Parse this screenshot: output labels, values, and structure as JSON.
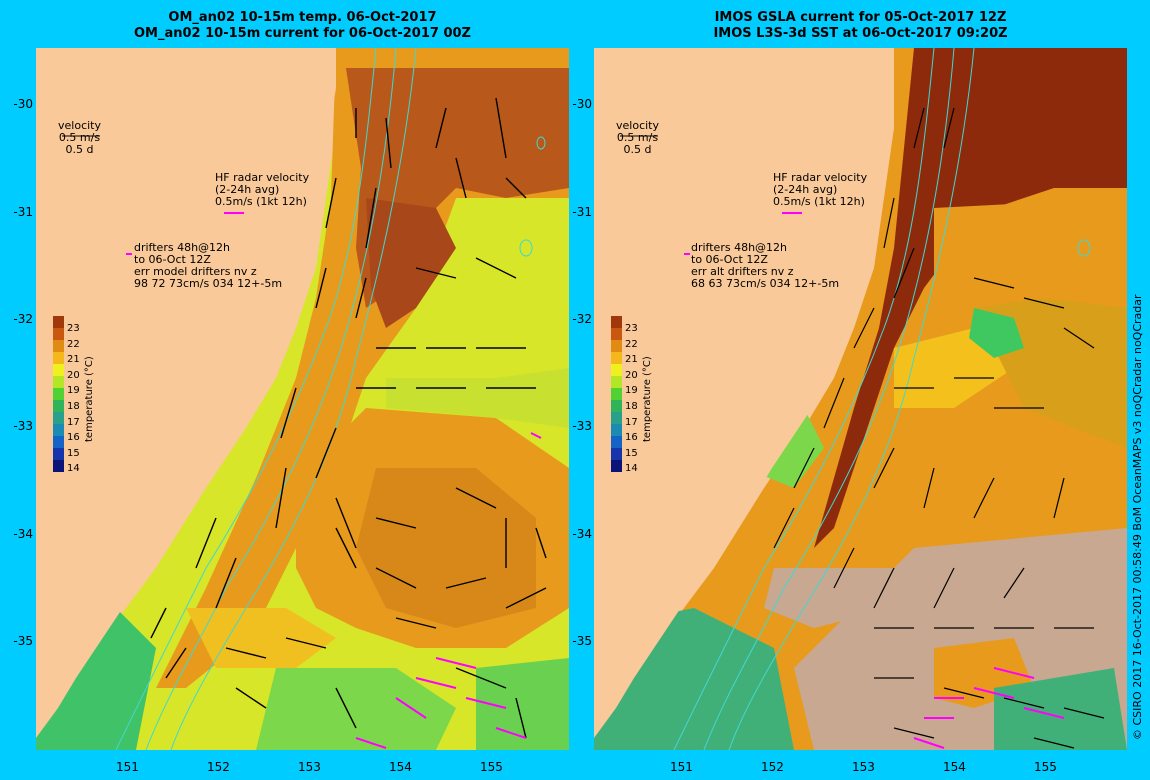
{
  "left": {
    "title_line1": "OM_an02 10-15m temp. 06-Oct-2017",
    "title_line2": "OM_an02 10-15m current for 06-Oct-2017 00Z",
    "legend": {
      "velocity": "velocity",
      "velocity_scale": "0.5 m/s",
      "velocity_days": "0.5 d",
      "hf_line1": "HF radar velocity",
      "hf_line2": "(2-24h avg)",
      "hf_line3": "0.5m/s (1kt 12h)",
      "drift_line1": "drifters 48h@12h",
      "drift_line2": "to 06-Oct 12Z",
      "drift_line3": "err model drifters nv z",
      "drift_line4": "98 72 73cm/s 034 12+-5m"
    }
  },
  "right": {
    "title_line1": "IMOS GSLA current for 05-Oct-2017 12Z",
    "title_line2": "IMOS L3S-3d SST at 06-Oct-2017 09:20Z",
    "legend": {
      "velocity": "velocity",
      "velocity_scale": "0.5 m/s",
      "velocity_days": "0.5 d",
      "hf_line1": "HF radar velocity",
      "hf_line2": "(2-24h avg)",
      "hf_line3": "0.5m/s (1kt 12h)",
      "drift_line1": "drifters 48h@12h",
      "drift_line2": "to 06-Oct 12Z",
      "drift_line3": "err alt drifters nv z",
      "drift_line4": "68 63 73cm/s 034 12+-5m"
    }
  },
  "y_ticks": [
    "-30",
    "-31",
    "-32",
    "-33",
    "-34",
    "-35"
  ],
  "x_ticks": [
    "151",
    "152",
    "153",
    "154",
    "155"
  ],
  "colorbar": {
    "label": "temperature (°C)",
    "ticks": [
      "23",
      "22",
      "21",
      "20",
      "19",
      "18",
      "17",
      "16",
      "15",
      "14"
    ],
    "colors": [
      "#a0380c",
      "#c85810",
      "#e08c14",
      "#f4b81c",
      "#f0f020",
      "#b4e628",
      "#50d232",
      "#30b45a",
      "#28a08c",
      "#1a8cb4",
      "#1464c8",
      "#1436aa",
      "#0a1478"
    ]
  },
  "credit": "© CSIRO 2017   16-Oct-2017 00:58:49 BoM OceanMAPS v3 noQCradar noQCradar",
  "colors": {
    "background": "#00ccff",
    "land": "#f9c99a",
    "hf_arrow": "#ff00ff",
    "no_data": "#c8a890"
  }
}
